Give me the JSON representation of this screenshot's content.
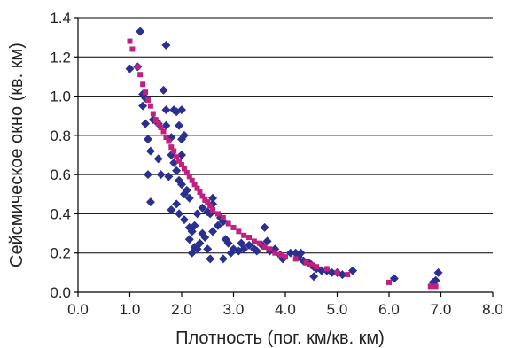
{
  "chart_data": {
    "type": "scatter",
    "xlabel": "Плотность (пог. км/кв. км)",
    "ylabel": "Сейсмическое окно (кв. км)",
    "xlim": [
      0,
      8
    ],
    "ylim": [
      0,
      1.4
    ],
    "x_ticks": [
      "0.0",
      "1.0",
      "2.0",
      "3.0",
      "4.0",
      "5.0",
      "6.0",
      "7.0",
      "8.0"
    ],
    "y_ticks": [
      "0.0",
      "0.2",
      "0.4",
      "0.6",
      "0.8",
      "1.0",
      "1.2",
      "1.4"
    ],
    "grid": "horizontal",
    "legend": "none",
    "series": [
      {
        "marker": "diamond",
        "color": "#2b2f8f",
        "points": [
          [
            1.2,
            1.33
          ],
          [
            1.7,
            1.26
          ],
          [
            1.0,
            1.14
          ],
          [
            1.15,
            1.15
          ],
          [
            1.25,
            1.01
          ],
          [
            1.3,
            0.99
          ],
          [
            1.25,
            0.95
          ],
          [
            1.3,
            0.86
          ],
          [
            1.45,
            0.88
          ],
          [
            1.55,
            0.86
          ],
          [
            1.35,
            0.78
          ],
          [
            1.4,
            0.72
          ],
          [
            1.55,
            0.68
          ],
          [
            1.35,
            0.6
          ],
          [
            1.4,
            0.46
          ],
          [
            1.65,
            1.03
          ],
          [
            1.7,
            0.93
          ],
          [
            1.7,
            0.85
          ],
          [
            1.8,
            0.79
          ],
          [
            1.85,
            0.93
          ],
          [
            1.9,
            0.92
          ],
          [
            2.0,
            0.93
          ],
          [
            1.95,
            0.85
          ],
          [
            2.0,
            0.78
          ],
          [
            2.05,
            0.8
          ],
          [
            1.8,
            0.7
          ],
          [
            1.85,
            0.66
          ],
          [
            1.9,
            0.62
          ],
          [
            1.75,
            0.59
          ],
          [
            1.6,
            0.6
          ],
          [
            1.95,
            0.57
          ],
          [
            2.0,
            0.55
          ],
          [
            2.05,
            0.5
          ],
          [
            2.1,
            0.52
          ],
          [
            2.15,
            0.48
          ],
          [
            1.9,
            0.45
          ],
          [
            1.8,
            0.42
          ],
          [
            1.95,
            0.4
          ],
          [
            2.05,
            0.37
          ],
          [
            2.15,
            0.33
          ],
          [
            2.2,
            0.31
          ],
          [
            2.25,
            0.34
          ],
          [
            2.15,
            0.27
          ],
          [
            2.25,
            0.23
          ],
          [
            2.2,
            0.2
          ],
          [
            2.3,
            0.22
          ],
          [
            2.4,
            0.3
          ],
          [
            2.45,
            0.28
          ],
          [
            2.35,
            0.25
          ],
          [
            2.5,
            0.22
          ],
          [
            2.55,
            0.17
          ],
          [
            2.3,
            0.4
          ],
          [
            2.4,
            0.43
          ],
          [
            2.5,
            0.41
          ],
          [
            2.55,
            0.4
          ],
          [
            2.6,
            0.45
          ],
          [
            2.7,
            0.34
          ],
          [
            2.75,
            0.38
          ],
          [
            2.8,
            0.36
          ],
          [
            2.6,
            0.31
          ],
          [
            2.85,
            0.27
          ],
          [
            2.9,
            0.25
          ],
          [
            3.0,
            0.22
          ],
          [
            2.95,
            0.2
          ],
          [
            2.8,
            0.17
          ],
          [
            3.1,
            0.21
          ],
          [
            3.15,
            0.25
          ],
          [
            3.2,
            0.22
          ],
          [
            3.3,
            0.24
          ],
          [
            3.4,
            0.22
          ],
          [
            3.45,
            0.21
          ],
          [
            3.6,
            0.33
          ],
          [
            3.55,
            0.24
          ],
          [
            3.65,
            0.26
          ],
          [
            3.7,
            0.21
          ],
          [
            3.8,
            0.22
          ],
          [
            3.9,
            0.19
          ],
          [
            3.95,
            0.17
          ],
          [
            4.1,
            0.2
          ],
          [
            4.2,
            0.2
          ],
          [
            4.25,
            0.18
          ],
          [
            4.3,
            0.2
          ],
          [
            4.35,
            0.16
          ],
          [
            4.45,
            0.15
          ],
          [
            4.5,
            0.14
          ],
          [
            4.55,
            0.13
          ],
          [
            4.6,
            0.12
          ],
          [
            4.7,
            0.11
          ],
          [
            4.8,
            0.11
          ],
          [
            4.9,
            0.1
          ],
          [
            5.0,
            0.1
          ],
          [
            4.55,
            0.08
          ],
          [
            5.1,
            0.09
          ],
          [
            5.3,
            0.11
          ],
          [
            6.1,
            0.07
          ],
          [
            6.9,
            0.06
          ],
          [
            6.95,
            0.1
          ],
          [
            6.85,
            0.05
          ],
          [
            2.6,
            0.48
          ],
          [
            2.0,
            0.7
          ]
        ]
      },
      {
        "marker": "square",
        "color": "#c2207f",
        "points": [
          [
            1.0,
            1.28
          ],
          [
            1.05,
            1.24
          ],
          [
            1.15,
            1.15
          ],
          [
            1.2,
            1.11
          ],
          [
            1.25,
            1.06
          ],
          [
            1.3,
            1.02
          ],
          [
            1.35,
            0.98
          ],
          [
            1.4,
            0.95
          ],
          [
            1.45,
            0.91
          ],
          [
            1.5,
            0.88
          ],
          [
            1.55,
            0.86
          ],
          [
            1.6,
            0.84
          ],
          [
            1.65,
            0.82
          ],
          [
            1.7,
            0.79
          ],
          [
            1.75,
            0.77
          ],
          [
            1.8,
            0.74
          ],
          [
            1.85,
            0.72
          ],
          [
            1.9,
            0.69
          ],
          [
            1.95,
            0.67
          ],
          [
            2.0,
            0.65
          ],
          [
            2.05,
            0.63
          ],
          [
            2.1,
            0.61
          ],
          [
            2.15,
            0.59
          ],
          [
            2.2,
            0.57
          ],
          [
            2.25,
            0.55
          ],
          [
            2.3,
            0.53
          ],
          [
            2.35,
            0.51
          ],
          [
            2.4,
            0.49
          ],
          [
            2.45,
            0.47
          ],
          [
            2.5,
            0.46
          ],
          [
            2.55,
            0.44
          ],
          [
            2.6,
            0.42
          ],
          [
            2.7,
            0.4
          ],
          [
            2.8,
            0.38
          ],
          [
            2.9,
            0.35
          ],
          [
            3.0,
            0.33
          ],
          [
            3.1,
            0.31
          ],
          [
            3.2,
            0.29
          ],
          [
            3.3,
            0.28
          ],
          [
            3.4,
            0.26
          ],
          [
            3.5,
            0.25
          ],
          [
            3.6,
            0.23
          ],
          [
            3.7,
            0.22
          ],
          [
            3.8,
            0.2
          ],
          [
            3.9,
            0.19
          ],
          [
            4.0,
            0.18
          ],
          [
            4.2,
            0.17
          ],
          [
            4.4,
            0.15
          ],
          [
            4.5,
            0.14
          ],
          [
            4.6,
            0.13
          ],
          [
            4.8,
            0.12
          ],
          [
            5.0,
            0.1
          ],
          [
            5.2,
            0.09
          ],
          [
            6.0,
            0.05
          ],
          [
            6.8,
            0.03
          ],
          [
            6.9,
            0.03
          ]
        ]
      }
    ]
  }
}
